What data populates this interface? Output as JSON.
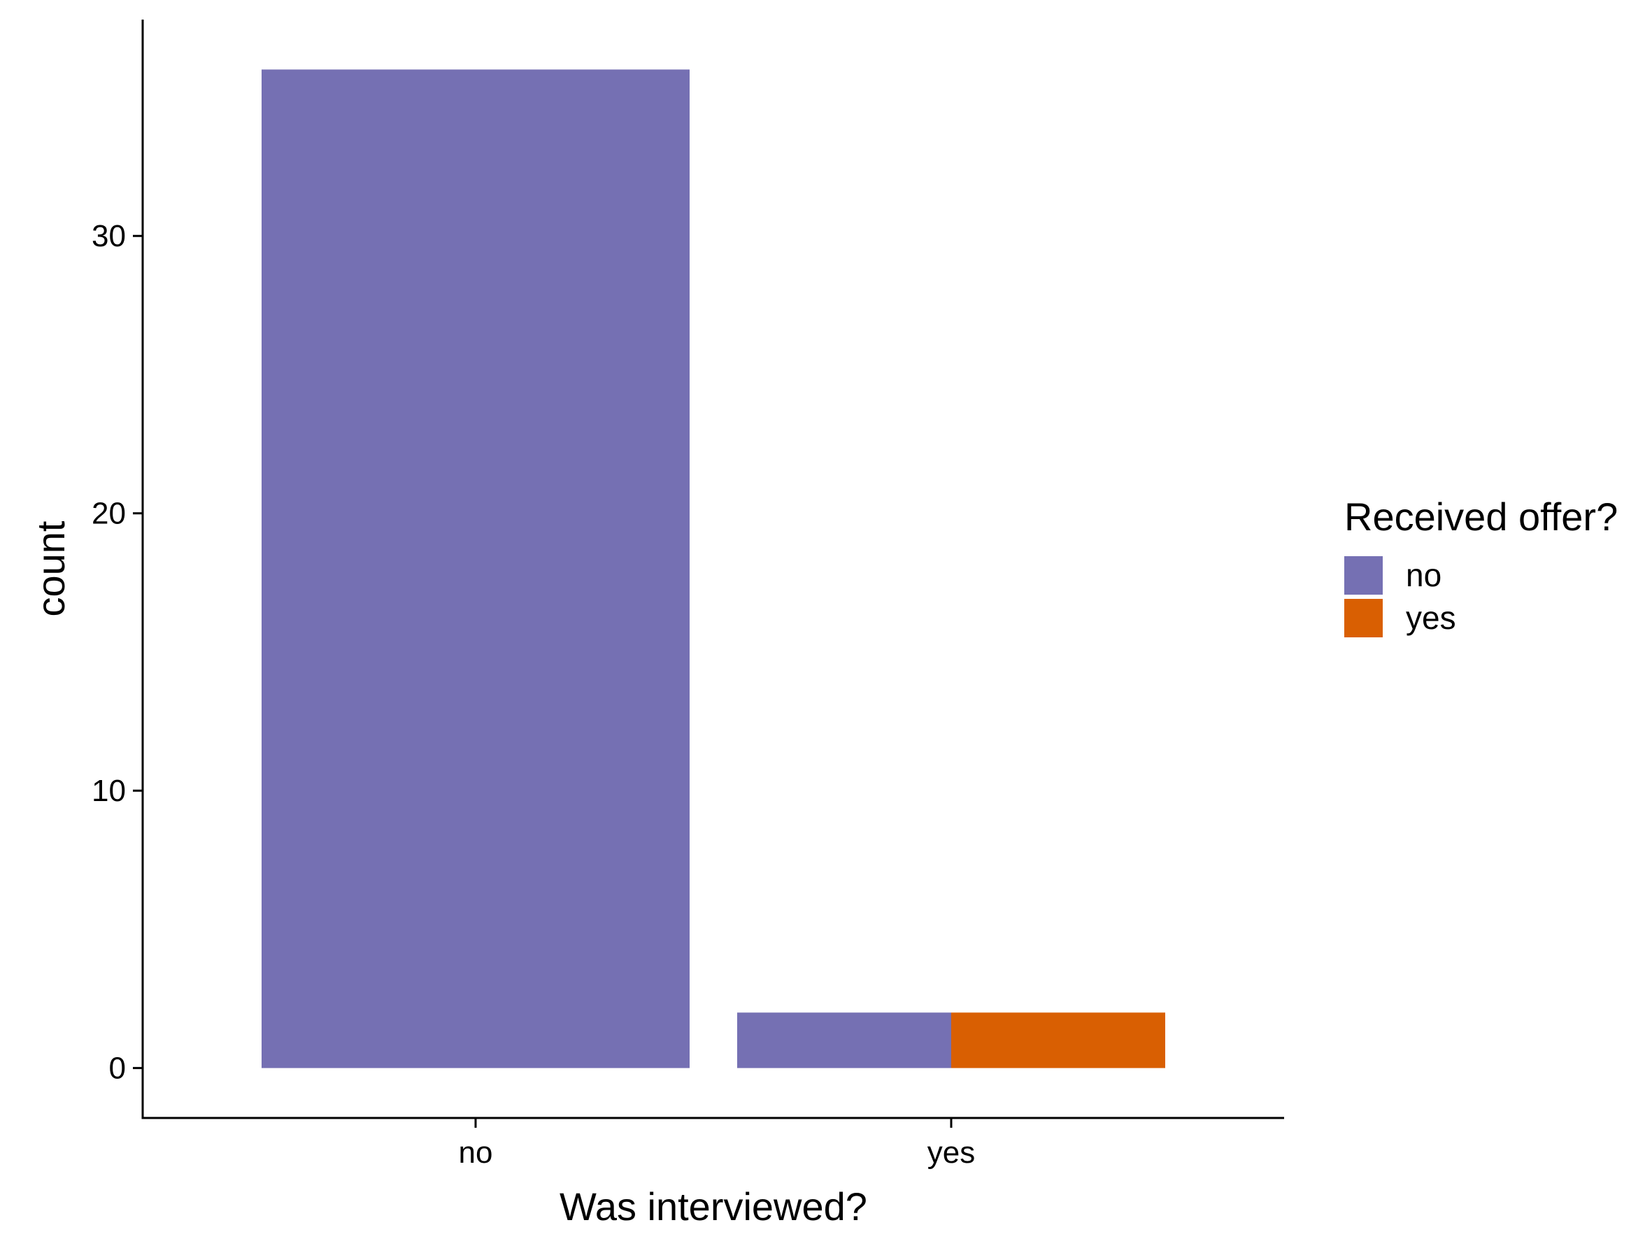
{
  "chart_data": {
    "type": "bar",
    "stacking": "stacked-horizontal-within-category",
    "categories": [
      "no",
      "yes"
    ],
    "series": [
      {
        "name": "no",
        "color": "#7570B3",
        "values": [
          36,
          2
        ]
      },
      {
        "name": "yes",
        "color": "#D95F02",
        "values": [
          0,
          2
        ]
      }
    ],
    "xlabel": "Was interviewed?",
    "ylabel": "count",
    "ylim": [
      -1.8,
      37.8
    ],
    "yticks": [
      0,
      10,
      20,
      30
    ],
    "grid": false,
    "legend": {
      "title": "Received offer?",
      "placement": "right",
      "entries": [
        {
          "label": "no",
          "color": "#7570B3"
        },
        {
          "label": "yes",
          "color": "#D95F02"
        }
      ]
    }
  }
}
